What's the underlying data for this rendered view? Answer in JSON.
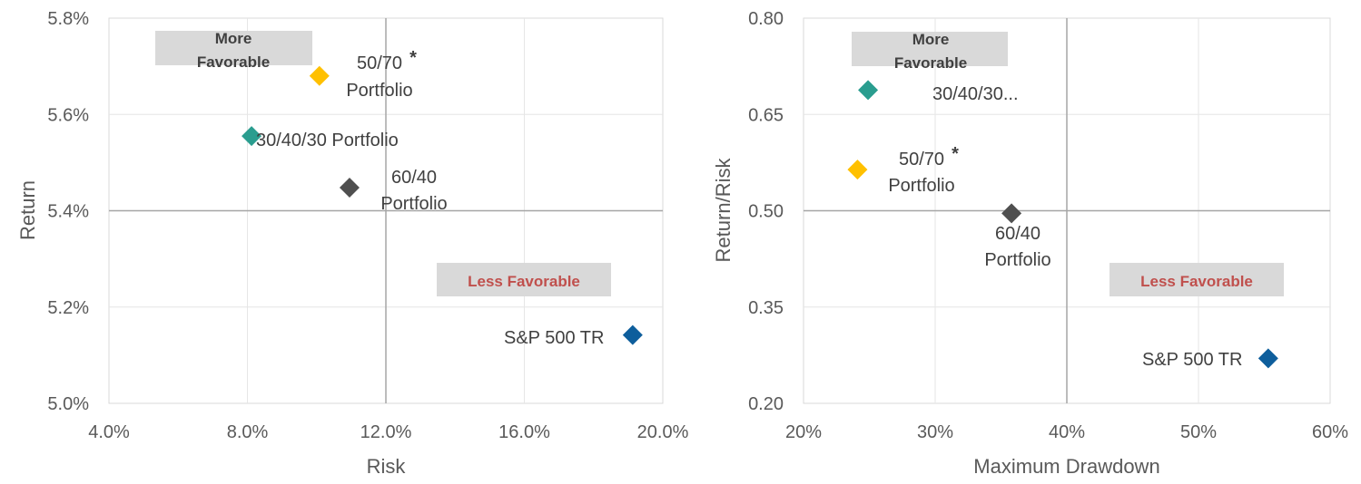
{
  "chart_data": [
    {
      "type": "scatter",
      "xlabel": "Risk",
      "ylabel": "Return",
      "xlim": [
        0.04,
        0.2
      ],
      "ylim": [
        0.05,
        0.058
      ],
      "x_ticks": [
        "4.0%",
        "8.0%",
        "12.0%",
        "16.0%",
        "20.0%"
      ],
      "y_ticks": [
        "5.0%",
        "5.2%",
        "5.4%",
        "5.6%",
        "5.8%"
      ],
      "grid": true,
      "quadrant_lines": {
        "x": 0.12,
        "y": 0.054
      },
      "annotations": [
        {
          "text": [
            "More",
            "Favorable"
          ],
          "color": "#404040"
        },
        {
          "text": [
            "Less Favorable"
          ],
          "color": "#C0504D"
        }
      ],
      "points": [
        {
          "label": [
            "50/70",
            "Portfolio"
          ],
          "asterisk": "*",
          "x": 0.1008,
          "y": 0.0568,
          "color": "#FFC000"
        },
        {
          "label": [
            "30/40/30 Portfolio"
          ],
          "x": 0.0812,
          "y": 0.05555,
          "color": "#2A9D8F"
        },
        {
          "label": [
            "60/40",
            "Portfolio"
          ],
          "x": 0.1095,
          "y": 0.05448,
          "color": "#4F4F4F"
        },
        {
          "label": [
            "S&P 500 TR"
          ],
          "x": 0.1913,
          "y": 0.05142,
          "color": "#0E5E9C"
        }
      ]
    },
    {
      "type": "scatter",
      "xlabel": "Maximum Drawdown",
      "ylabel": "Return/Risk",
      "xlim": [
        0.2,
        0.6
      ],
      "ylim": [
        0.2,
        0.8
      ],
      "x_ticks": [
        "20%",
        "30%",
        "40%",
        "50%",
        "60%"
      ],
      "y_ticks": [
        "0.20",
        "0.35",
        "0.50",
        "0.65",
        "0.80"
      ],
      "grid": true,
      "quadrant_lines": {
        "x": 0.4,
        "y": 0.5
      },
      "annotations": [
        {
          "text": [
            "More",
            "Favorable"
          ],
          "color": "#404040"
        },
        {
          "text": [
            "Less Favorable"
          ],
          "color": "#C0504D"
        }
      ],
      "points": [
        {
          "label": [
            "30/40/30..."
          ],
          "x": 0.249,
          "y": 0.688,
          "color": "#2A9D8F"
        },
        {
          "label": [
            "50/70",
            "Portfolio"
          ],
          "asterisk": "*",
          "x": 0.241,
          "y": 0.564,
          "color": "#FFC000"
        },
        {
          "label": [
            "60/40",
            "Portfolio"
          ],
          "x": 0.358,
          "y": 0.496,
          "color": "#4F4F4F"
        },
        {
          "label": [
            "S&P 500 TR"
          ],
          "x": 0.553,
          "y": 0.27,
          "color": "#0E5E9C"
        }
      ]
    }
  ]
}
